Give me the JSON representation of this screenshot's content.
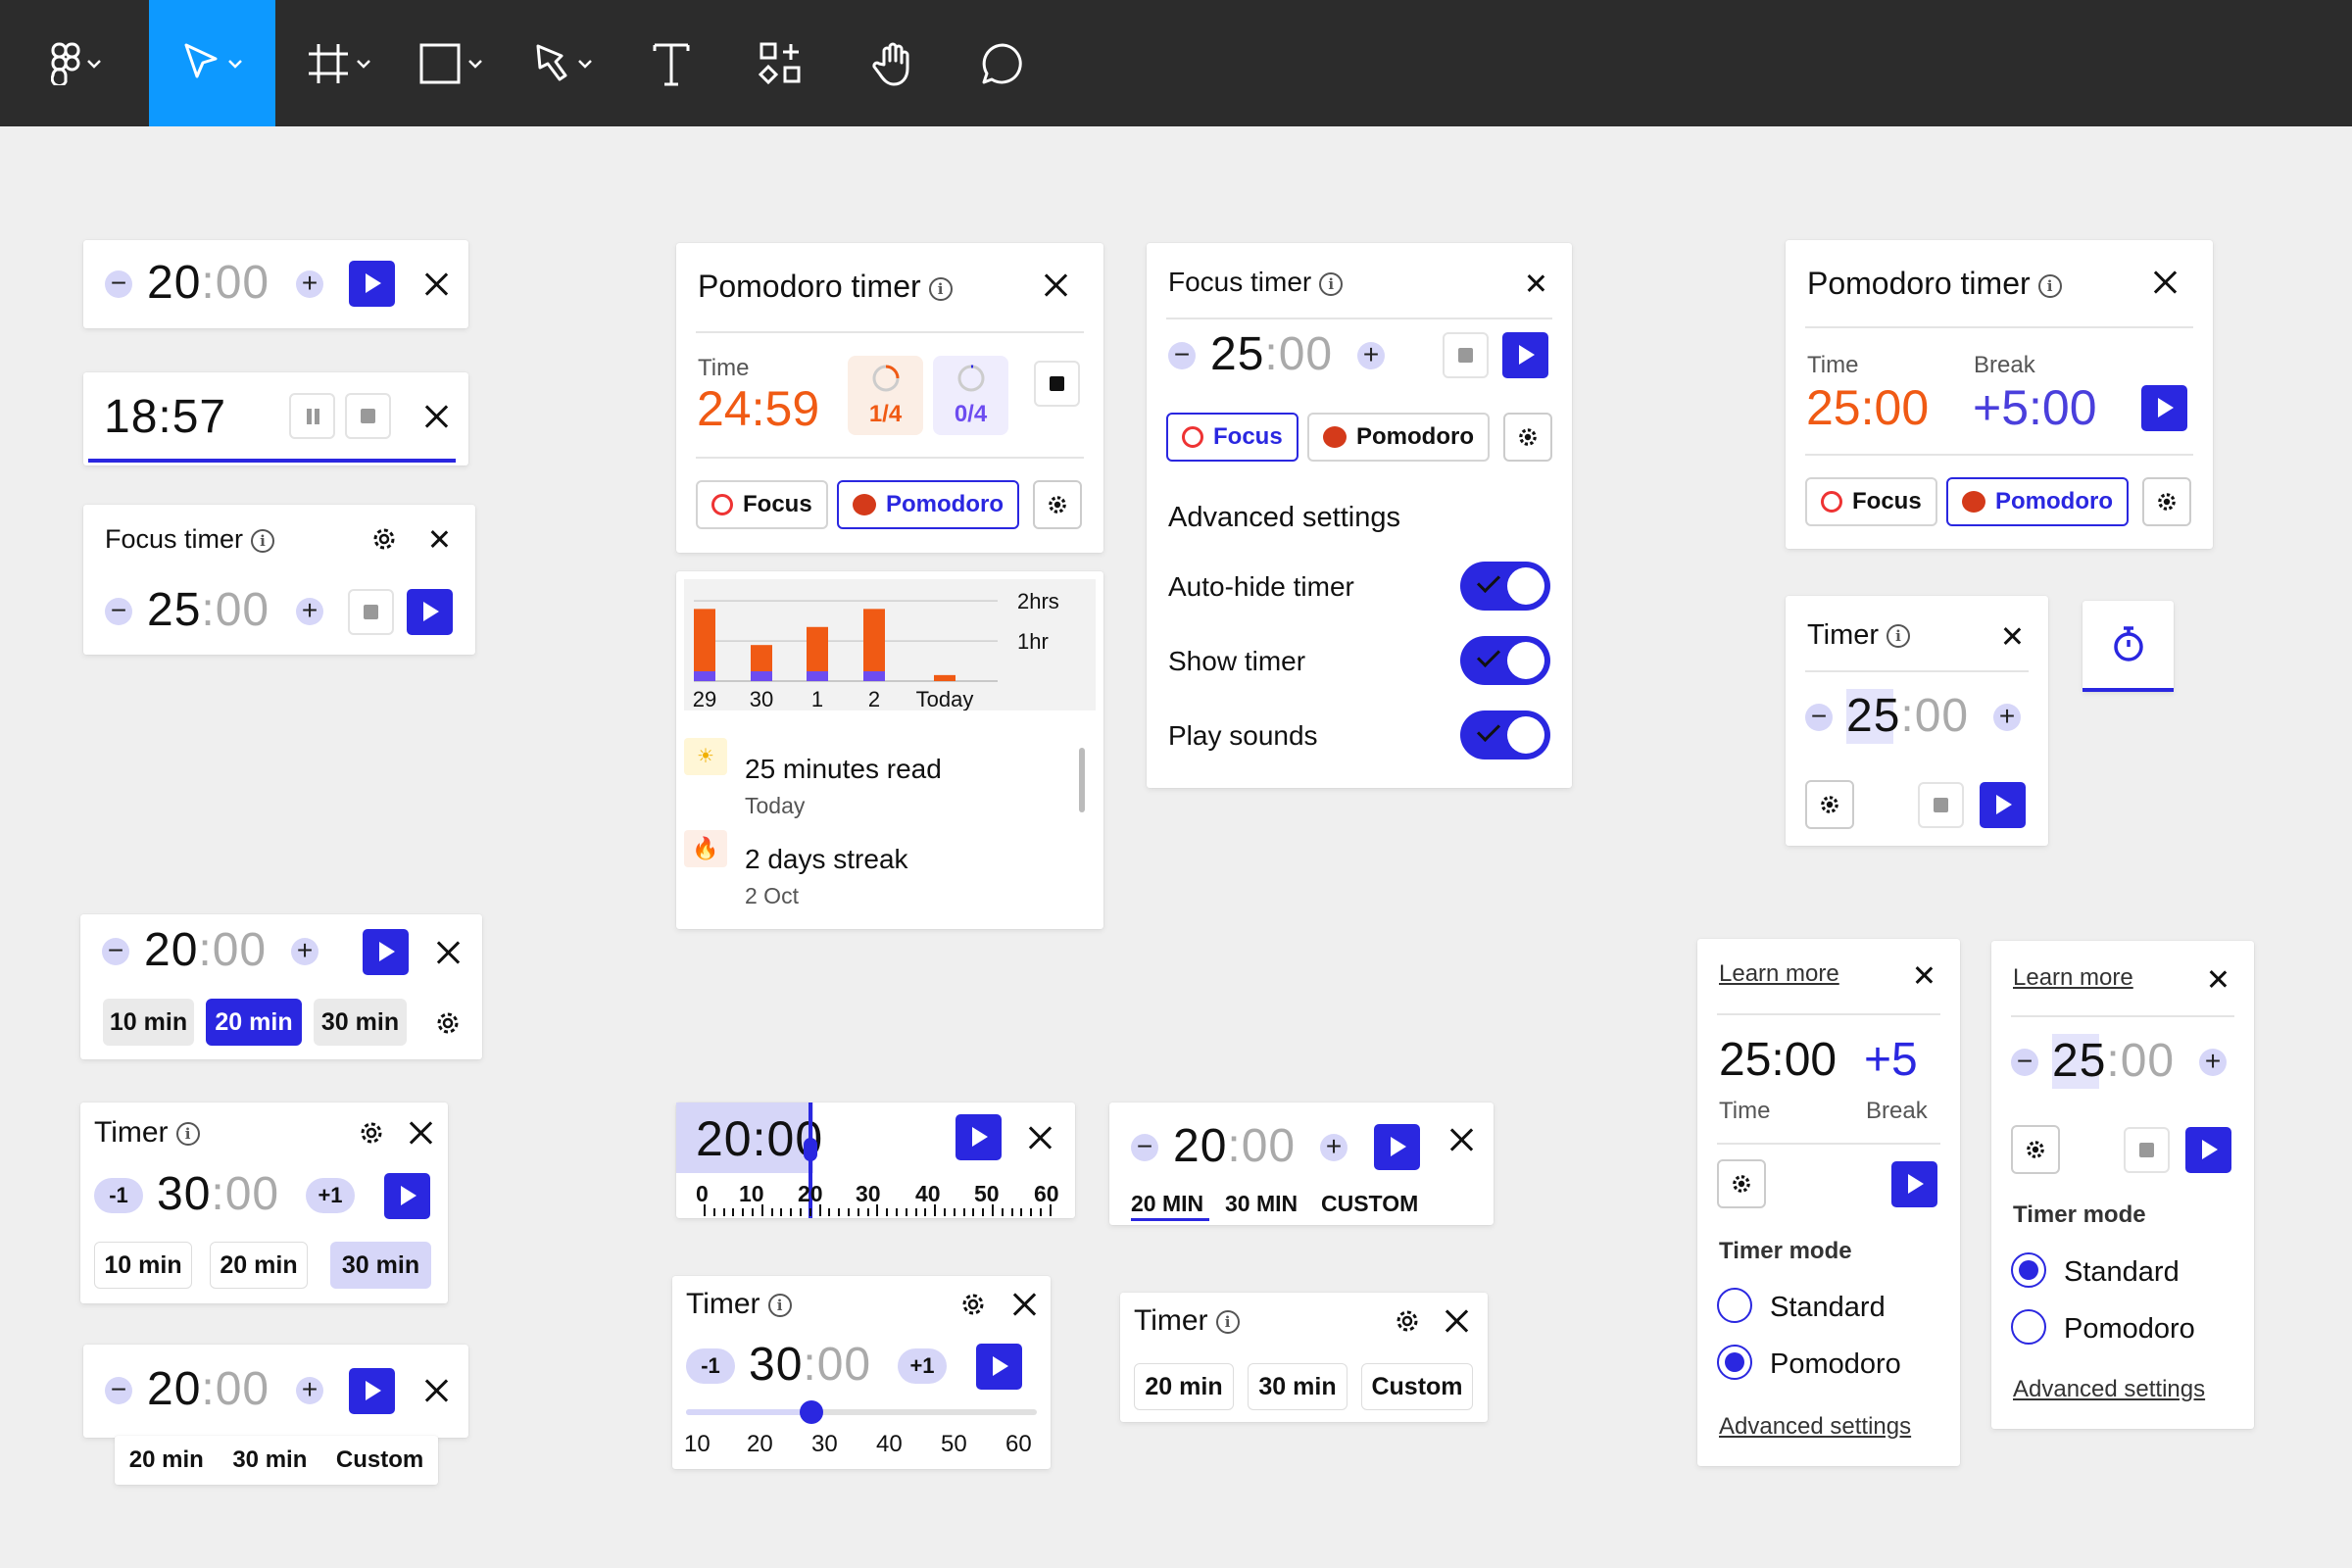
{
  "colors": {
    "accent": "#2a27e0",
    "orange": "#f05a14",
    "toolbar": "#2c2c2c",
    "active_tool": "#0d99ff"
  },
  "toolbar": {
    "tools": [
      "figma-menu-icon",
      "move-icon",
      "frame-icon",
      "rectangle-icon",
      "pen-icon",
      "text-icon",
      "resources-icon",
      "hand-icon",
      "comment-icon"
    ]
  },
  "w1": {
    "min": "20",
    "sec": ":00"
  },
  "w2": {
    "time": "18:57"
  },
  "w3": {
    "title": "Focus timer",
    "min": "25",
    "sec": ":00"
  },
  "w4": {
    "min": "20",
    "sec": ":00",
    "chips": [
      "10 min",
      "20 min",
      "30 min"
    ]
  },
  "w5": {
    "title": "Timer",
    "minus": "-1",
    "plus": "+1",
    "min": "30",
    "sec": ":00",
    "chips": [
      "10 min",
      "20 min",
      "30 min"
    ]
  },
  "w6": {
    "min": "20",
    "sec": ":00",
    "chips": [
      "20 min",
      "30 min",
      "Custom"
    ]
  },
  "pomo1": {
    "title": "Pomodoro timer",
    "time_label": "Time",
    "time": "24:59",
    "ring1": "1/4",
    "ring2": "0/4",
    "focus": "Focus",
    "pomodoro": "Pomodoro"
  },
  "stats": {
    "y_labels": [
      "2hrs",
      "1hr"
    ],
    "x_labels": [
      "29",
      "30",
      "1",
      "2",
      "Today"
    ],
    "items": [
      {
        "title": "25 minutes read",
        "sub": "Today"
      },
      {
        "title": "2 days streak",
        "sub": "2 Oct"
      }
    ]
  },
  "chart_data": {
    "type": "bar",
    "categories": [
      "29",
      "30",
      "1",
      "2",
      "Today"
    ],
    "series": [
      {
        "name": "",
        "values": [
          1.8,
          0.9,
          1.35,
          1.8,
          0.15
        ]
      }
    ],
    "ylim": [
      0,
      2.2
    ],
    "yticks": [
      "1hr",
      "2hrs"
    ]
  },
  "ruler": {
    "time": "20:00",
    "ticks": [
      "0",
      "10",
      "20",
      "30",
      "40",
      "50",
      "60"
    ]
  },
  "w7": {
    "title": "Timer",
    "minus": "-1",
    "plus": "+1",
    "min": "30",
    "sec": ":00",
    "ticks": [
      "10",
      "20",
      "30",
      "40",
      "50",
      "60"
    ]
  },
  "focus2": {
    "title": "Focus timer",
    "min": "25",
    "sec": ":00",
    "focus": "Focus",
    "pomodoro": "Pomodoro",
    "adv_title": "Advanced settings",
    "toggles": [
      "Auto-hide timer",
      "Show timer",
      "Play sounds"
    ]
  },
  "w8": {
    "min": "20",
    "sec": ":00",
    "tabs": [
      "20 MIN",
      "30 MIN",
      "CUSTOM"
    ]
  },
  "w9": {
    "title": "Timer",
    "chips": [
      "20 min",
      "30 min",
      "Custom"
    ]
  },
  "pomo2": {
    "title": "Pomodoro timer",
    "time_label": "Time",
    "break_label": "Break",
    "time": "25:00",
    "break": "+5:00",
    "focus": "Focus",
    "pomodoro": "Pomodoro"
  },
  "timer3": {
    "title": "Timer",
    "min": "25",
    "sec": ":00"
  },
  "p1": {
    "learn": "Learn more",
    "time": "25:00",
    "break": "+5",
    "time_label": "Time",
    "break_label": "Break",
    "mode": "Timer mode",
    "standard": "Standard",
    "pomodoro": "Pomodoro",
    "adv": "Advanced settings"
  },
  "p2": {
    "learn": "Learn more",
    "min": "25",
    "sec": ":00",
    "mode": "Timer mode",
    "standard": "Standard",
    "pomodoro": "Pomodoro",
    "adv": "Advanced settings"
  }
}
